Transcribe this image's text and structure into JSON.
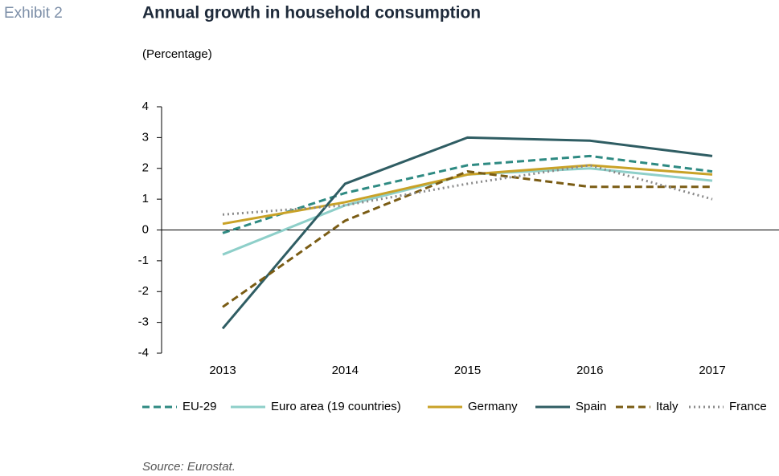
{
  "chart_data": {
    "type": "line",
    "exhibit": "Exhibit 2",
    "title": "Annual growth in household consumption",
    "subtitle": "(Percentage)",
    "source": "Source: Eurostat.",
    "categories": [
      "2013",
      "2014",
      "2015",
      "2016",
      "2017"
    ],
    "ylim": [
      -4,
      4
    ],
    "yticks": [
      -4,
      -3,
      -2,
      -1,
      0,
      1,
      2,
      3,
      4
    ],
    "series": [
      {
        "name": "EU-29",
        "color": "#2e8a82",
        "dash": "dashed",
        "values": [
          -0.1,
          1.2,
          2.1,
          2.4,
          1.9
        ]
      },
      {
        "name": "Euro area (19 countries)",
        "color": "#8ecfc9",
        "dash": "solid",
        "values": [
          -0.8,
          0.8,
          1.8,
          2.0,
          1.6
        ]
      },
      {
        "name": "Germany",
        "color": "#c9a227",
        "dash": "solid",
        "values": [
          0.2,
          0.9,
          1.8,
          2.1,
          1.8
        ]
      },
      {
        "name": "Spain",
        "color": "#2f5d63",
        "dash": "solid",
        "values": [
          -3.2,
          1.5,
          3.0,
          2.9,
          2.4
        ]
      },
      {
        "name": "Italy",
        "color": "#7a5c14",
        "dash": "dashed",
        "values": [
          -2.5,
          0.3,
          1.9,
          1.4,
          1.4
        ]
      },
      {
        "name": "France",
        "color": "#8a8a8a",
        "dash": "dotted",
        "values": [
          0.5,
          0.8,
          1.5,
          2.1,
          1.0
        ]
      }
    ]
  }
}
